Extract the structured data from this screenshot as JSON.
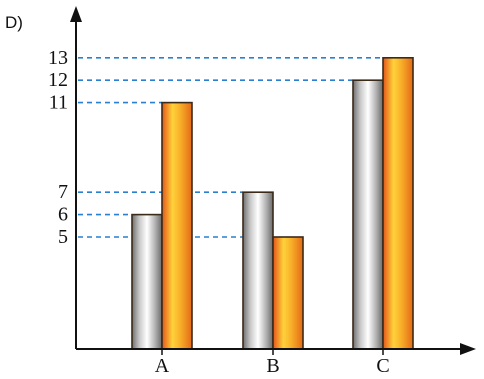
{
  "chart_data": {
    "type": "bar",
    "label": "D)",
    "categories": [
      "A",
      "B",
      "C"
    ],
    "series": [
      {
        "values": [
          6,
          7,
          12
        ],
        "color": "#b4b4b4",
        "fill": "silver-gradient"
      },
      {
        "values": [
          11,
          5,
          13
        ],
        "color": "#f5a623",
        "fill": "orange-gradient"
      }
    ],
    "yticks": [
      5,
      6,
      7,
      11,
      12,
      13
    ],
    "ylim": [
      0,
      15
    ],
    "grid": false,
    "guide_lines": "dashed, blue",
    "guide_color": "#2a7fd0",
    "legend": "none"
  }
}
